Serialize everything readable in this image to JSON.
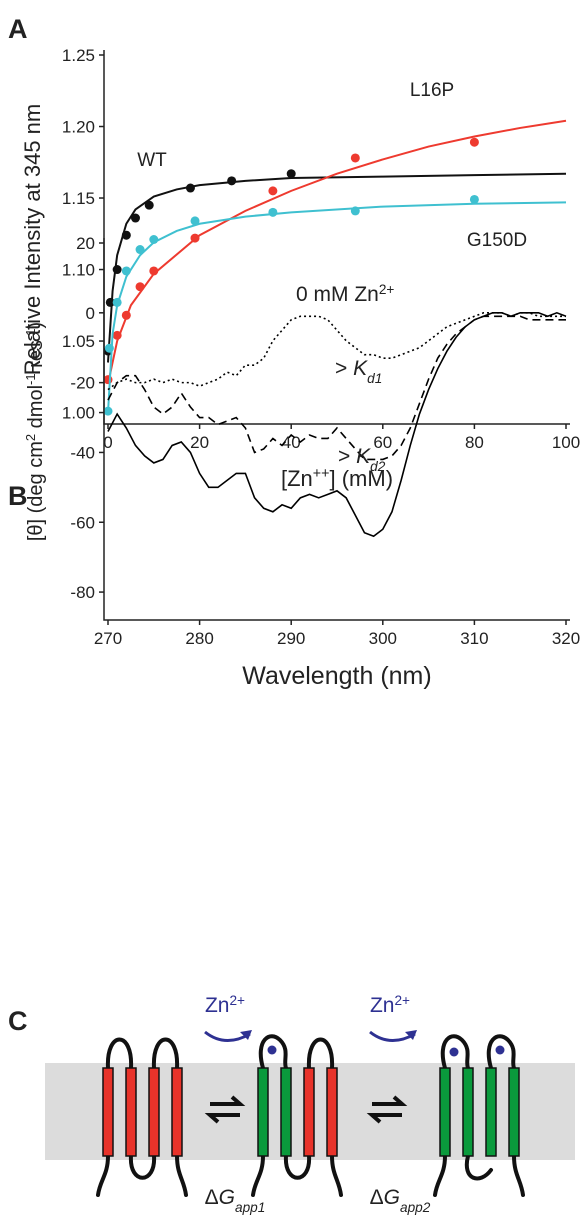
{
  "panels": [
    "A",
    "B",
    "C"
  ],
  "chart_data": [
    {
      "type": "scatter",
      "ylabel": "Relative Intensity at 345 nm",
      "xlabel": [
        "[Zn",
        "++",
        "] (mM)"
      ],
      "xlim": [
        0,
        100
      ],
      "xticks": [
        0,
        20,
        40,
        60,
        80,
        100
      ],
      "ylim": [
        0.992,
        1.25
      ],
      "yticks": [
        {
          "value": 1.0,
          "label": "1.00"
        },
        1.05,
        {
          "value": 1.1,
          "label": "1.10"
        },
        1.15,
        {
          "value": 1.2,
          "label": "1.20"
        },
        1.25
      ],
      "series": [
        {
          "name": "WT",
          "color": "#111111",
          "x": [
            0,
            0.5,
            2,
            4,
            6,
            9,
            18,
            27,
            40
          ],
          "values": [
            1.043,
            1.077,
            1.1,
            1.124,
            1.136,
            1.145,
            1.157,
            1.162,
            1.167
          ],
          "fit": {
            "x": [
              0,
              1,
              2,
              4,
              6,
              10,
              15,
              20,
              30,
              40,
              60,
              80,
              100
            ],
            "values": [
              1.035,
              1.085,
              1.11,
              1.132,
              1.142,
              1.151,
              1.156,
              1.159,
              1.162,
              1.164,
              1.165,
              1.166,
              1.167
            ]
          }
        },
        {
          "name": "L16P",
          "color": "#ee3a2f",
          "x": [
            0,
            2,
            4,
            7,
            10,
            19,
            36,
            54,
            80
          ],
          "values": [
            1.023,
            1.054,
            1.068,
            1.088,
            1.099,
            1.122,
            1.155,
            1.178,
            1.189
          ],
          "fit": {
            "x": [
              0,
              2,
              5,
              10,
              20,
              30,
              40,
              50,
              60,
              70,
              80,
              90,
              100
            ],
            "values": [
              1.02,
              1.05,
              1.075,
              1.097,
              1.124,
              1.141,
              1.155,
              1.167,
              1.177,
              1.186,
              1.193,
              1.199,
              1.204
            ]
          }
        },
        {
          "name": "G150D",
          "color": "#3fc0d0",
          "x": [
            0,
            0.3,
            2,
            4,
            7,
            10,
            19,
            36,
            54,
            80
          ],
          "values": [
            1.001,
            1.045,
            1.077,
            1.099,
            1.114,
            1.121,
            1.134,
            1.14,
            1.141,
            1.149
          ],
          "fit": {
            "x": [
              0,
              1,
              2,
              4,
              7,
              10,
              15,
              20,
              30,
              40,
              60,
              80,
              100
            ],
            "values": [
              1.0,
              1.055,
              1.075,
              1.095,
              1.11,
              1.119,
              1.127,
              1.132,
              1.137,
              1.14,
              1.144,
              1.146,
              1.147
            ]
          }
        }
      ]
    },
    {
      "type": "line",
      "xlabel": "Wavelength (nm)",
      "ylabel": [
        "[θ] (deg cm",
        "2",
        " dmol",
        "-1",
        " res",
        "-1",
        ")"
      ],
      "xlim": [
        270,
        320
      ],
      "xticks": [
        270,
        280,
        290,
        300,
        310,
        320
      ],
      "ylim": [
        -88,
        20
      ],
      "yticks": [
        -80,
        -60,
        -40,
        -20,
        0,
        20
      ],
      "annotations": [
        [
          "0 mM Zn",
          "2+"
        ],
        [
          "> ",
          "K",
          "d1"
        ],
        [
          "> ",
          "K",
          "d2"
        ]
      ],
      "x": [
        270,
        271,
        272,
        273,
        274,
        275,
        276,
        277,
        278,
        279,
        280,
        281,
        282,
        283,
        284,
        285,
        286,
        287,
        288,
        289,
        290,
        291,
        292,
        293,
        294,
        295,
        296,
        297,
        298,
        299,
        300,
        301,
        302,
        303,
        304,
        305,
        306,
        307,
        308,
        309,
        310,
        311,
        312,
        313,
        314,
        315,
        316,
        317,
        318,
        319,
        320
      ],
      "series": [
        {
          "style": "dotted",
          "color": "#000000",
          "values": [
            -22,
            -20,
            -19,
            -20,
            -20,
            -19,
            -20,
            -19,
            -20,
            -20,
            -21,
            -20,
            -19,
            -17,
            -18,
            -15,
            -15,
            -13,
            -8,
            -5,
            -2,
            -1,
            -1,
            -1,
            -2,
            -5,
            -8,
            -10,
            -12,
            -12,
            -13,
            -13,
            -12,
            -11,
            -10,
            -8,
            -6,
            -4,
            -3,
            -2,
            -1,
            0,
            0,
            0,
            -1,
            0,
            0,
            -1,
            -1,
            -1,
            -1
          ]
        },
        {
          "style": "dashed",
          "color": "#000000",
          "values": [
            -25,
            -20,
            -18,
            -18,
            -22,
            -27,
            -29,
            -27,
            -23,
            -27,
            -30,
            -30,
            -32,
            -31,
            -30,
            -33,
            -40,
            -39,
            -36,
            -38,
            -35,
            -37,
            -35,
            -36,
            -36,
            -33,
            -36,
            -39,
            -42,
            -42,
            -42,
            -41,
            -38,
            -33,
            -26,
            -19,
            -13,
            -9,
            -6,
            -4,
            -2,
            -1,
            -1,
            -1,
            -1,
            -1,
            -2,
            -2,
            -2,
            -2,
            -2
          ]
        },
        {
          "style": "solid",
          "color": "#000000",
          "values": [
            -34,
            -29,
            -33,
            -38,
            -41,
            -43,
            -42,
            -38,
            -37,
            -40,
            -46,
            -50,
            -50,
            -48,
            -46,
            -46,
            -53,
            -56,
            -57,
            -55,
            -56,
            -53,
            -52,
            -53,
            -52,
            -51,
            -53,
            -58,
            -63,
            -64,
            -62,
            -57,
            -48,
            -38,
            -29,
            -22,
            -16,
            -11,
            -7,
            -4,
            -2,
            -1,
            0,
            0,
            -1,
            0,
            0,
            0,
            -1,
            0,
            -1
          ]
        }
      ]
    }
  ],
  "diagram": {
    "zn": [
      [
        "Zn",
        "2+"
      ],
      [
        "Zn",
        "2+"
      ]
    ],
    "dg": [
      [
        "Δ",
        "G",
        "app1"
      ],
      [
        "Δ",
        "G",
        "app2"
      ]
    ]
  }
}
